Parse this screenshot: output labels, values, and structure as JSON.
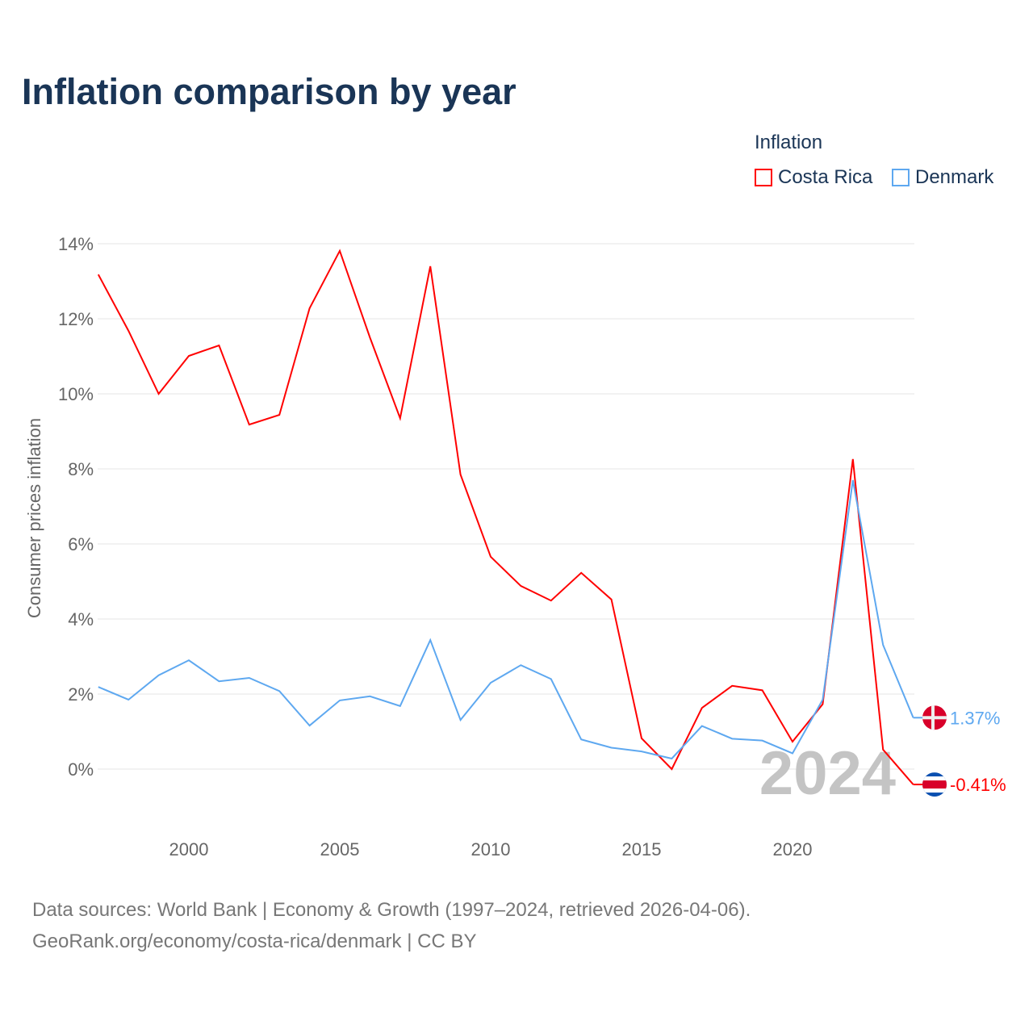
{
  "chart_data": {
    "type": "line",
    "title": "Inflation comparison by year",
    "ylabel": "Consumer prices inflation",
    "xlabel": "",
    "legend_title": "Inflation",
    "legend_position": "top-right",
    "ylim": [
      -1.5,
      14
    ],
    "yticks": [
      0,
      2,
      4,
      6,
      8,
      10,
      12,
      14
    ],
    "ytick_labels": [
      "0%",
      "2%",
      "4%",
      "6%",
      "8%",
      "10%",
      "12%",
      "14%"
    ],
    "xticks": [
      2000,
      2005,
      2010,
      2015,
      2020
    ],
    "xtick_labels": [
      "2000",
      "2005",
      "2010",
      "2015",
      "2020"
    ],
    "x": [
      1997,
      1998,
      1999,
      2000,
      2001,
      2002,
      2003,
      2004,
      2005,
      2006,
      2007,
      2008,
      2009,
      2010,
      2011,
      2012,
      2013,
      2014,
      2015,
      2016,
      2017,
      2018,
      2019,
      2020,
      2021,
      2022,
      2023,
      2024
    ],
    "series": [
      {
        "name": "Costa Rica",
        "color": "#ff0000",
        "end_label": "-0.41%",
        "values": [
          13.18,
          11.68,
          10.0,
          11.01,
          11.29,
          9.18,
          9.44,
          12.28,
          13.81,
          11.5,
          9.35,
          13.4,
          7.85,
          5.66,
          4.88,
          4.49,
          5.23,
          4.52,
          0.82,
          0.0,
          1.63,
          2.22,
          2.1,
          0.73,
          1.73,
          8.26,
          0.52,
          -0.41
        ]
      },
      {
        "name": "Denmark",
        "color": "#5ea8f0",
        "end_label": "1.37%",
        "values": [
          2.19,
          1.85,
          2.5,
          2.9,
          2.34,
          2.43,
          2.08,
          1.16,
          1.83,
          1.94,
          1.68,
          3.44,
          1.31,
          2.3,
          2.77,
          2.4,
          0.79,
          0.57,
          0.47,
          0.28,
          1.15,
          0.81,
          0.76,
          0.42,
          1.85,
          7.7,
          3.31,
          1.37
        ]
      }
    ],
    "year_watermark": "2024",
    "grid": true
  },
  "source_line1": "Data sources: World Bank | Economy & Growth (1997–2024, retrieved 2026-04-06).",
  "source_line2": "GeoRank.org/economy/costa-rica/denmark | CC BY"
}
